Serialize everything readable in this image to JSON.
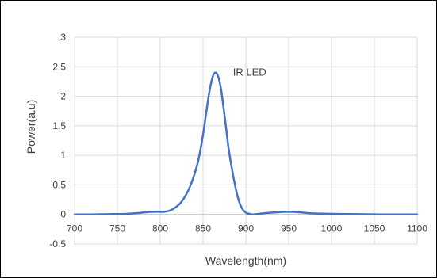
{
  "chart_data": {
    "type": "line",
    "title": "",
    "xlabel": "Wavelength(nm)",
    "ylabel": "Power(a.u)",
    "xlim": [
      700,
      1100
    ],
    "ylim": [
      -0.5,
      3
    ],
    "xticks": [
      700,
      750,
      800,
      850,
      900,
      950,
      1000,
      1050,
      1100
    ],
    "yticks": [
      -0.5,
      0,
      0.5,
      1,
      1.5,
      2,
      2.5,
      3
    ],
    "xtick_labels": [
      "700",
      "750",
      "800",
      "850",
      "900",
      "950",
      "1000",
      "1050",
      "1100"
    ],
    "ytick_labels": [
      "-0.5",
      "0",
      "0.5",
      "1",
      "1.5",
      "2",
      "2.5",
      "3"
    ],
    "grid": true,
    "legend": "none",
    "line_color": "#4472C4",
    "annotations": [
      {
        "text": "IR LED",
        "x": 885,
        "y": 2.35
      }
    ],
    "series": [
      {
        "x": [
          700,
          720,
          740,
          760,
          775,
          785,
          795,
          805,
          812,
          818,
          824,
          830,
          835,
          840,
          845,
          850,
          853,
          856,
          859,
          862,
          865,
          868,
          871,
          874,
          877,
          880,
          884,
          888,
          892,
          896,
          900,
          904,
          908,
          915,
          925,
          940,
          950,
          960,
          975,
          1000,
          1030,
          1060,
          1100
        ],
        "y": [
          0.0,
          0.0,
          0.005,
          0.01,
          0.025,
          0.04,
          0.045,
          0.045,
          0.07,
          0.12,
          0.2,
          0.33,
          0.48,
          0.68,
          0.95,
          1.35,
          1.65,
          1.95,
          2.2,
          2.36,
          2.4,
          2.32,
          2.12,
          1.8,
          1.45,
          1.1,
          0.75,
          0.45,
          0.22,
          0.09,
          0.03,
          0.01,
          0.0,
          0.01,
          0.025,
          0.04,
          0.045,
          0.04,
          0.02,
          0.01,
          0.005,
          0.0,
          0.0
        ]
      }
    ]
  }
}
